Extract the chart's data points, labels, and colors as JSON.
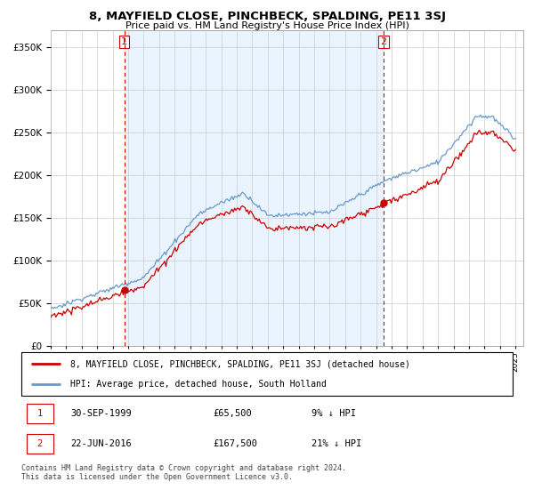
{
  "title": "8, MAYFIELD CLOSE, PINCHBECK, SPALDING, PE11 3SJ",
  "subtitle": "Price paid vs. HM Land Registry's House Price Index (HPI)",
  "ylim": [
    0,
    370000
  ],
  "yticks": [
    0,
    50000,
    100000,
    150000,
    200000,
    250000,
    300000,
    350000
  ],
  "sale1_year": 1999.75,
  "sale1_price": 65500,
  "sale2_year": 2016.47,
  "sale2_price": 167500,
  "legend_line1": "8, MAYFIELD CLOSE, PINCHBECK, SPALDING, PE11 3SJ (detached house)",
  "legend_line2": "HPI: Average price, detached house, South Holland",
  "footer": "Contains HM Land Registry data © Crown copyright and database right 2024.\nThis data is licensed under the Open Government Licence v3.0.",
  "price_color": "#cc0000",
  "hpi_color": "#6699cc",
  "vline_color": "#cc0000",
  "shade_color": "#ddeeff",
  "background_color": "#ffffff",
  "grid_color": "#cccccc",
  "xmin": 1995.0,
  "xmax": 2025.5
}
